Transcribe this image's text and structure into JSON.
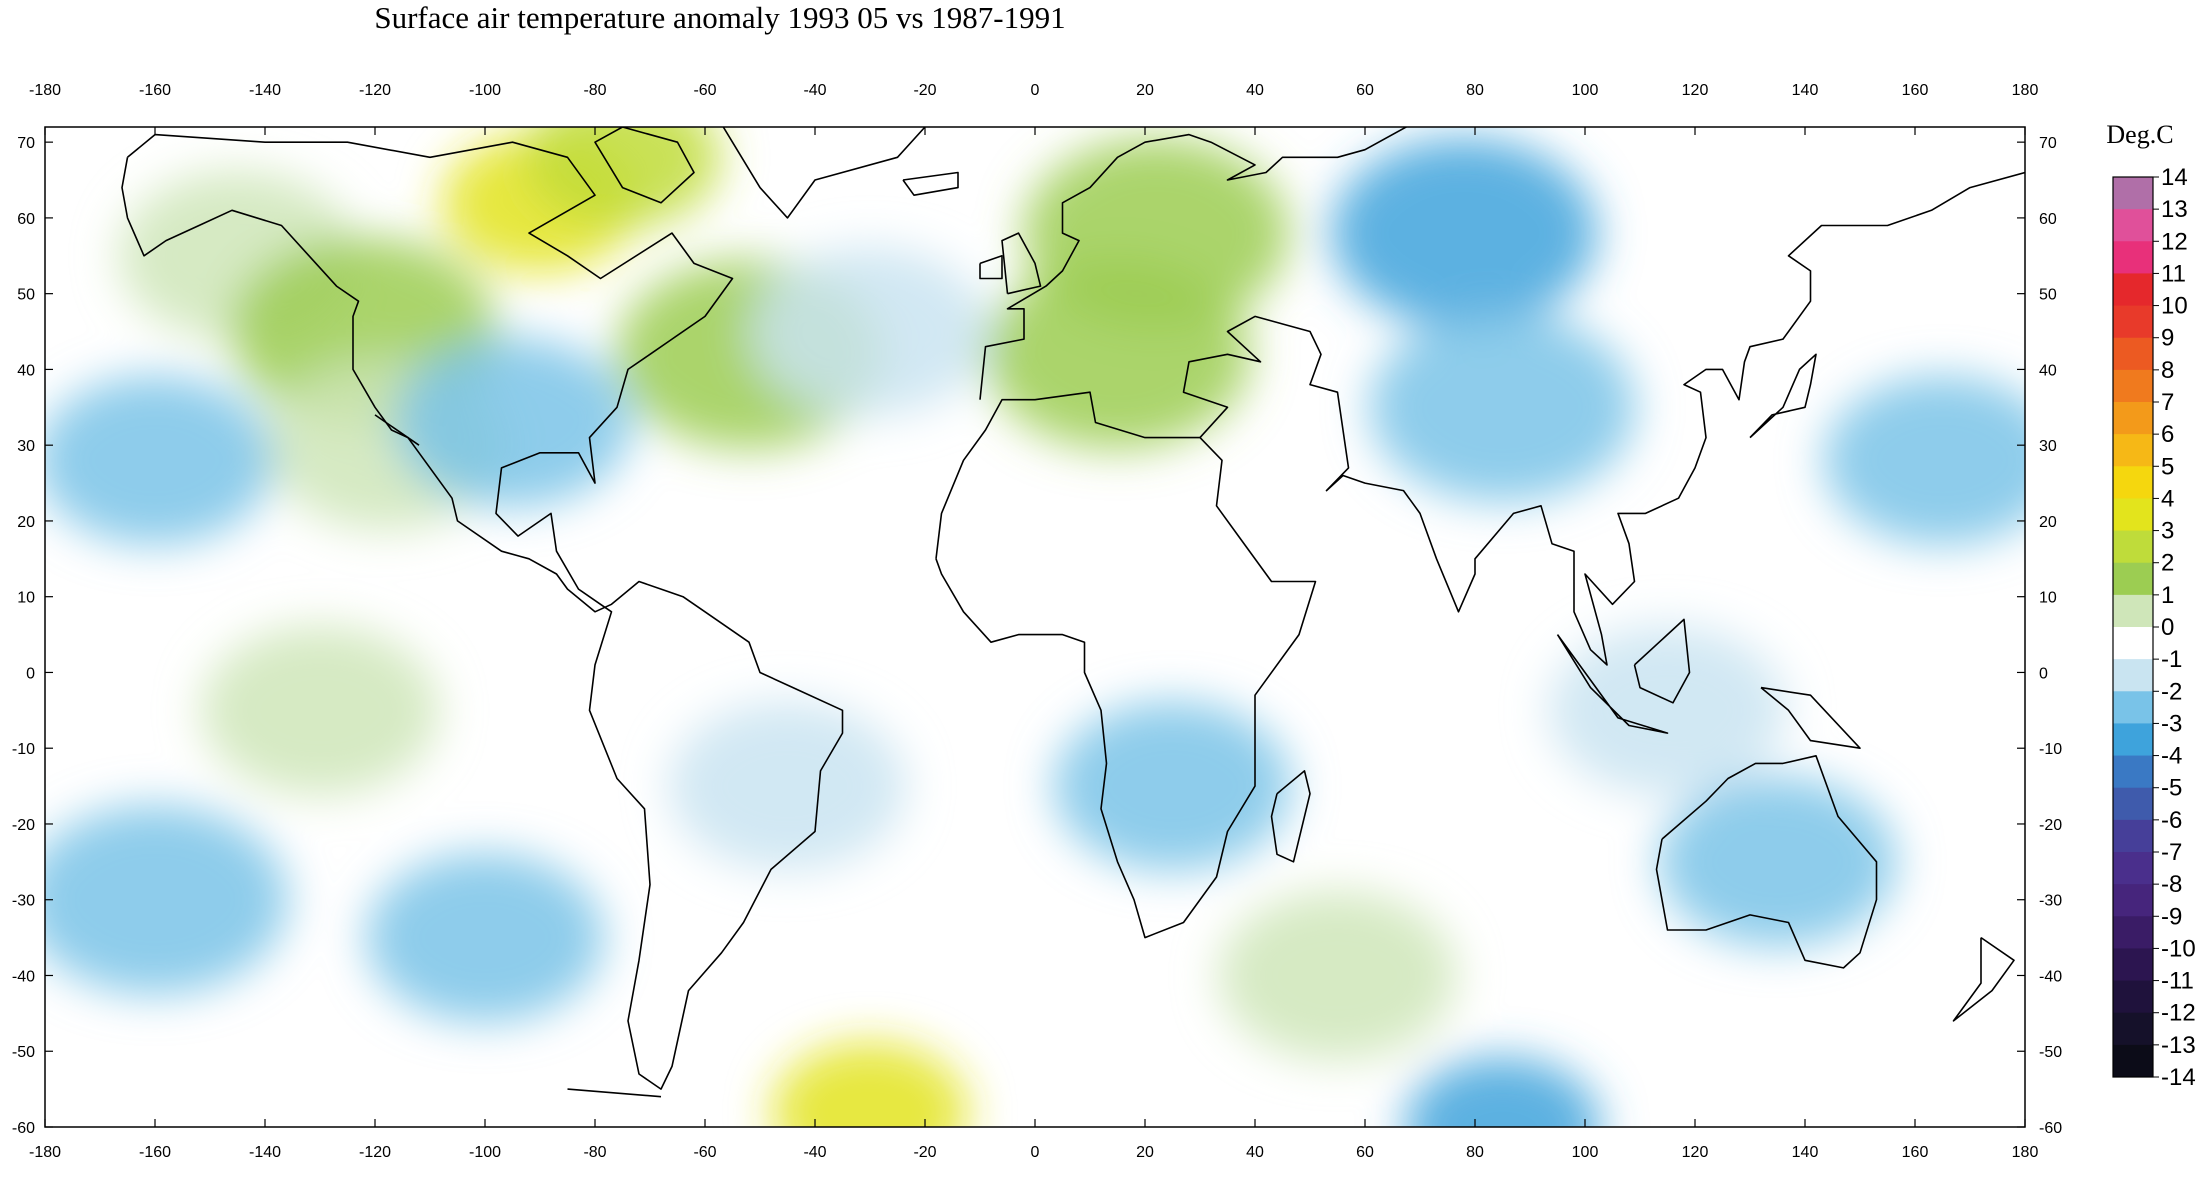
{
  "title": "Surface air temperature anomaly 1993 05 vs 1987-1991",
  "colorbar": {
    "title": "Deg.C",
    "labels": [
      "14",
      "13",
      "12",
      "11",
      "10",
      "9",
      "8",
      "7",
      "6",
      "5",
      "4",
      "3",
      "2",
      "1",
      "0",
      "-1",
      "-2",
      "-3",
      "-4",
      "-5",
      "-6",
      "-7",
      "-8",
      "-9",
      "-10",
      "-11",
      "-12",
      "-13",
      "-14"
    ],
    "colors": [
      "#b06fa8",
      "#e0509a",
      "#e8307a",
      "#e5282c",
      "#e83a2a",
      "#ec5a22",
      "#f07a1e",
      "#f39a1a",
      "#f6b816",
      "#f5d70e",
      "#e3e41c",
      "#bfdc3a",
      "#9ccd52",
      "#cfe6b9",
      "#ffffff",
      "#c9e4f1",
      "#79c3e8",
      "#3ea3dc",
      "#3a79c4",
      "#3f5bac",
      "#463f99",
      "#4a2f8c",
      "#46257c",
      "#3a1c66",
      "#2c1550",
      "#1f123c",
      "#15112a",
      "#0c0c18"
    ]
  },
  "map": {
    "lon_ticks": [
      "-180",
      "-160",
      "-140",
      "-120",
      "-100",
      "-80",
      "-60",
      "-40",
      "-20",
      "0",
      "20",
      "40",
      "60",
      "80",
      "100",
      "120",
      "140",
      "160",
      "180"
    ],
    "lat_ticks": [
      "70",
      "60",
      "50",
      "40",
      "30",
      "20",
      "10",
      "0",
      "-10",
      "-20",
      "-30",
      "-40",
      "-50",
      "-60"
    ],
    "lon_range": [
      -180,
      180
    ],
    "lat_range": [
      -60,
      72
    ],
    "anomaly_blobs": [
      {
        "region": "north-america-northeast",
        "lon": -90,
        "lat": 62,
        "value": 4
      },
      {
        "region": "north-america-northeast-edge",
        "lon": -75,
        "lat": 68,
        "value": 3
      },
      {
        "region": "alaska",
        "lon": -145,
        "lat": 55,
        "value": 1.5
      },
      {
        "region": "western-canada",
        "lon": -122,
        "lat": 45,
        "value": 2
      },
      {
        "region": "western-north-america",
        "lon": -118,
        "lat": 30,
        "value": 1
      },
      {
        "region": "central-us",
        "lon": -95,
        "lat": 33,
        "value": -1.5
      },
      {
        "region": "northeast-pacific",
        "lon": -160,
        "lat": 28,
        "value": -1.5
      },
      {
        "region": "north-atlantic-west",
        "lon": -52,
        "lat": 42,
        "value": 2
      },
      {
        "region": "north-atlantic",
        "lon": -30,
        "lat": 45,
        "value": -1
      },
      {
        "region": "scandinavia",
        "lon": 22,
        "lat": 58,
        "value": 2.5
      },
      {
        "region": "europe",
        "lon": 15,
        "lat": 42,
        "value": 2
      },
      {
        "region": "siberia",
        "lon": 78,
        "lat": 58,
        "value": -2.5
      },
      {
        "region": "central-asia",
        "lon": 85,
        "lat": 35,
        "value": -2
      },
      {
        "region": "north-pacific-west",
        "lon": 165,
        "lat": 28,
        "value": -1.5
      },
      {
        "region": "south-pacific",
        "lon": -160,
        "lat": -30,
        "value": -2
      },
      {
        "region": "southeast-pacific",
        "lon": -100,
        "lat": -35,
        "value": -1.5
      },
      {
        "region": "south-atlantic-ice",
        "lon": -30,
        "lat": -58,
        "value": 4
      },
      {
        "region": "southern-ocean-indian",
        "lon": 85,
        "lat": -60,
        "value": -3
      },
      {
        "region": "indian-ocean-south",
        "lon": 55,
        "lat": -40,
        "value": 1.5
      },
      {
        "region": "australia",
        "lon": 135,
        "lat": -25,
        "value": -1.5
      },
      {
        "region": "south-america-east",
        "lon": -45,
        "lat": -15,
        "value": -1
      },
      {
        "region": "africa-south",
        "lon": 25,
        "lat": -15,
        "value": -1.5
      },
      {
        "region": "tropical-pacific-east",
        "lon": -130,
        "lat": -5,
        "value": 1
      },
      {
        "region": "indonesia",
        "lon": 115,
        "lat": -5,
        "value": -1
      }
    ]
  }
}
